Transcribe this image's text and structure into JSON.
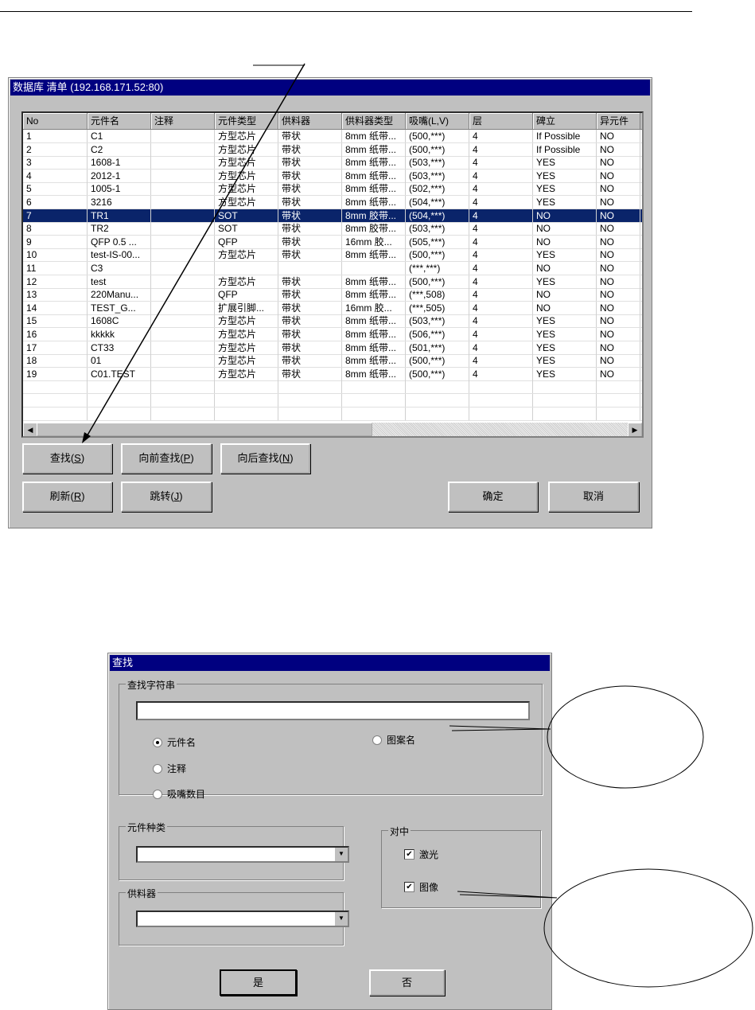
{
  "list_dialog": {
    "title": "数据库 清单 (192.168.171.52:80)",
    "columns": [
      "No",
      "元件名",
      "注释",
      "元件类型",
      "供料器",
      "供料器类型",
      "吸嘴(L,V)",
      "层",
      "碑立",
      "异元件"
    ],
    "rows": [
      [
        "1",
        "C1",
        "",
        "方型芯片",
        "带状",
        "8mm 纸带...",
        "(500,***)",
        "4",
        "If Possible",
        "NO"
      ],
      [
        "2",
        "C2",
        "",
        "方型芯片",
        "带状",
        "8mm 纸带...",
        "(500,***)",
        "4",
        "If Possible",
        "NO"
      ],
      [
        "3",
        "1608-1",
        "",
        "方型芯片",
        "带状",
        "8mm 纸带...",
        "(503,***)",
        "4",
        "YES",
        "NO"
      ],
      [
        "4",
        "2012-1",
        "",
        "方型芯片",
        "带状",
        "8mm 纸带...",
        "(503,***)",
        "4",
        "YES",
        "NO"
      ],
      [
        "5",
        "1005-1",
        "",
        "方型芯片",
        "带状",
        "8mm 纸带...",
        "(502,***)",
        "4",
        "YES",
        "NO"
      ],
      [
        "6",
        "3216",
        "",
        "方型芯片",
        "带状",
        "8mm 纸带...",
        "(504,***)",
        "4",
        "YES",
        "NO"
      ],
      [
        "7",
        "TR1",
        "",
        "SOT",
        "带状",
        "8mm 胶带...",
        "(504,***)",
        "4",
        "NO",
        "NO"
      ],
      [
        "8",
        "TR2",
        "",
        "SOT",
        "带状",
        "8mm 胶带...",
        "(503,***)",
        "4",
        "NO",
        "NO"
      ],
      [
        "9",
        "QFP 0.5 ...",
        "",
        "QFP",
        "带状",
        "16mm 胶...",
        "(505,***)",
        "4",
        "NO",
        "NO"
      ],
      [
        "10",
        "test-IS-00...",
        "",
        "方型芯片",
        "带状",
        "8mm 纸带...",
        "(500,***)",
        "4",
        "YES",
        "NO"
      ],
      [
        "11",
        "C3",
        "",
        "",
        "",
        "",
        "(***,***)",
        "4",
        "NO",
        "NO"
      ],
      [
        "12",
        "test",
        "",
        "方型芯片",
        "带状",
        "8mm 纸带...",
        "(500,***)",
        "4",
        "YES",
        "NO"
      ],
      [
        "13",
        "220Manu...",
        "",
        "QFP",
        "带状",
        "8mm 纸带...",
        "(***,508)",
        "4",
        "NO",
        "NO"
      ],
      [
        "14",
        "TEST_G...",
        "",
        "扩展引脚...",
        "带状",
        "16mm 胶...",
        "(***,505)",
        "4",
        "NO",
        "NO"
      ],
      [
        "15",
        "1608C",
        "",
        "方型芯片",
        "带状",
        "8mm 纸带...",
        "(503,***)",
        "4",
        "YES",
        "NO"
      ],
      [
        "16",
        "kkkkk",
        "",
        "方型芯片",
        "带状",
        "8mm 纸带...",
        "(506,***)",
        "4",
        "YES",
        "NO"
      ],
      [
        "17",
        "CT33",
        "",
        "方型芯片",
        "带状",
        "8mm 纸带...",
        "(501,***)",
        "4",
        "YES",
        "NO"
      ],
      [
        "18",
        "01",
        "",
        "方型芯片",
        "带状",
        "8mm 纸带...",
        "(500,***)",
        "4",
        "YES",
        "NO"
      ],
      [
        "19",
        "C01.TEST",
        "",
        "方型芯片",
        "带状",
        "8mm 纸带...",
        "(500,***)",
        "4",
        "YES",
        "NO"
      ]
    ],
    "selected_row": "7",
    "buttons": {
      "find": "查找",
      "find_key": "S",
      "prev": "向前查找",
      "prev_key": "P",
      "next": "向后查找",
      "next_key": "N",
      "refresh": "刷新",
      "refresh_key": "R",
      "jump": "跳转",
      "jump_key": "J",
      "ok": "确定",
      "cancel": "取消"
    }
  },
  "find_dialog": {
    "title": "查找",
    "search_group": "查找字符串",
    "search_value": "",
    "radios": {
      "part_name": "元件名",
      "comment": "注释",
      "nozzle_count": "吸嘴数目",
      "pattern_name": "图案名"
    },
    "selected_radio": "part_name",
    "part_type_group": "元件种类",
    "part_type_value": "",
    "feeder_group": "供料器",
    "feeder_value": "",
    "centering_group": "对中",
    "laser": "激光",
    "laser_checked": true,
    "image": "图像",
    "image_checked": true,
    "yes": "是",
    "no": "否"
  },
  "colors": {
    "titlebar": "#000080",
    "selection": "#0a246a",
    "dialog": "#c0c0c0"
  }
}
